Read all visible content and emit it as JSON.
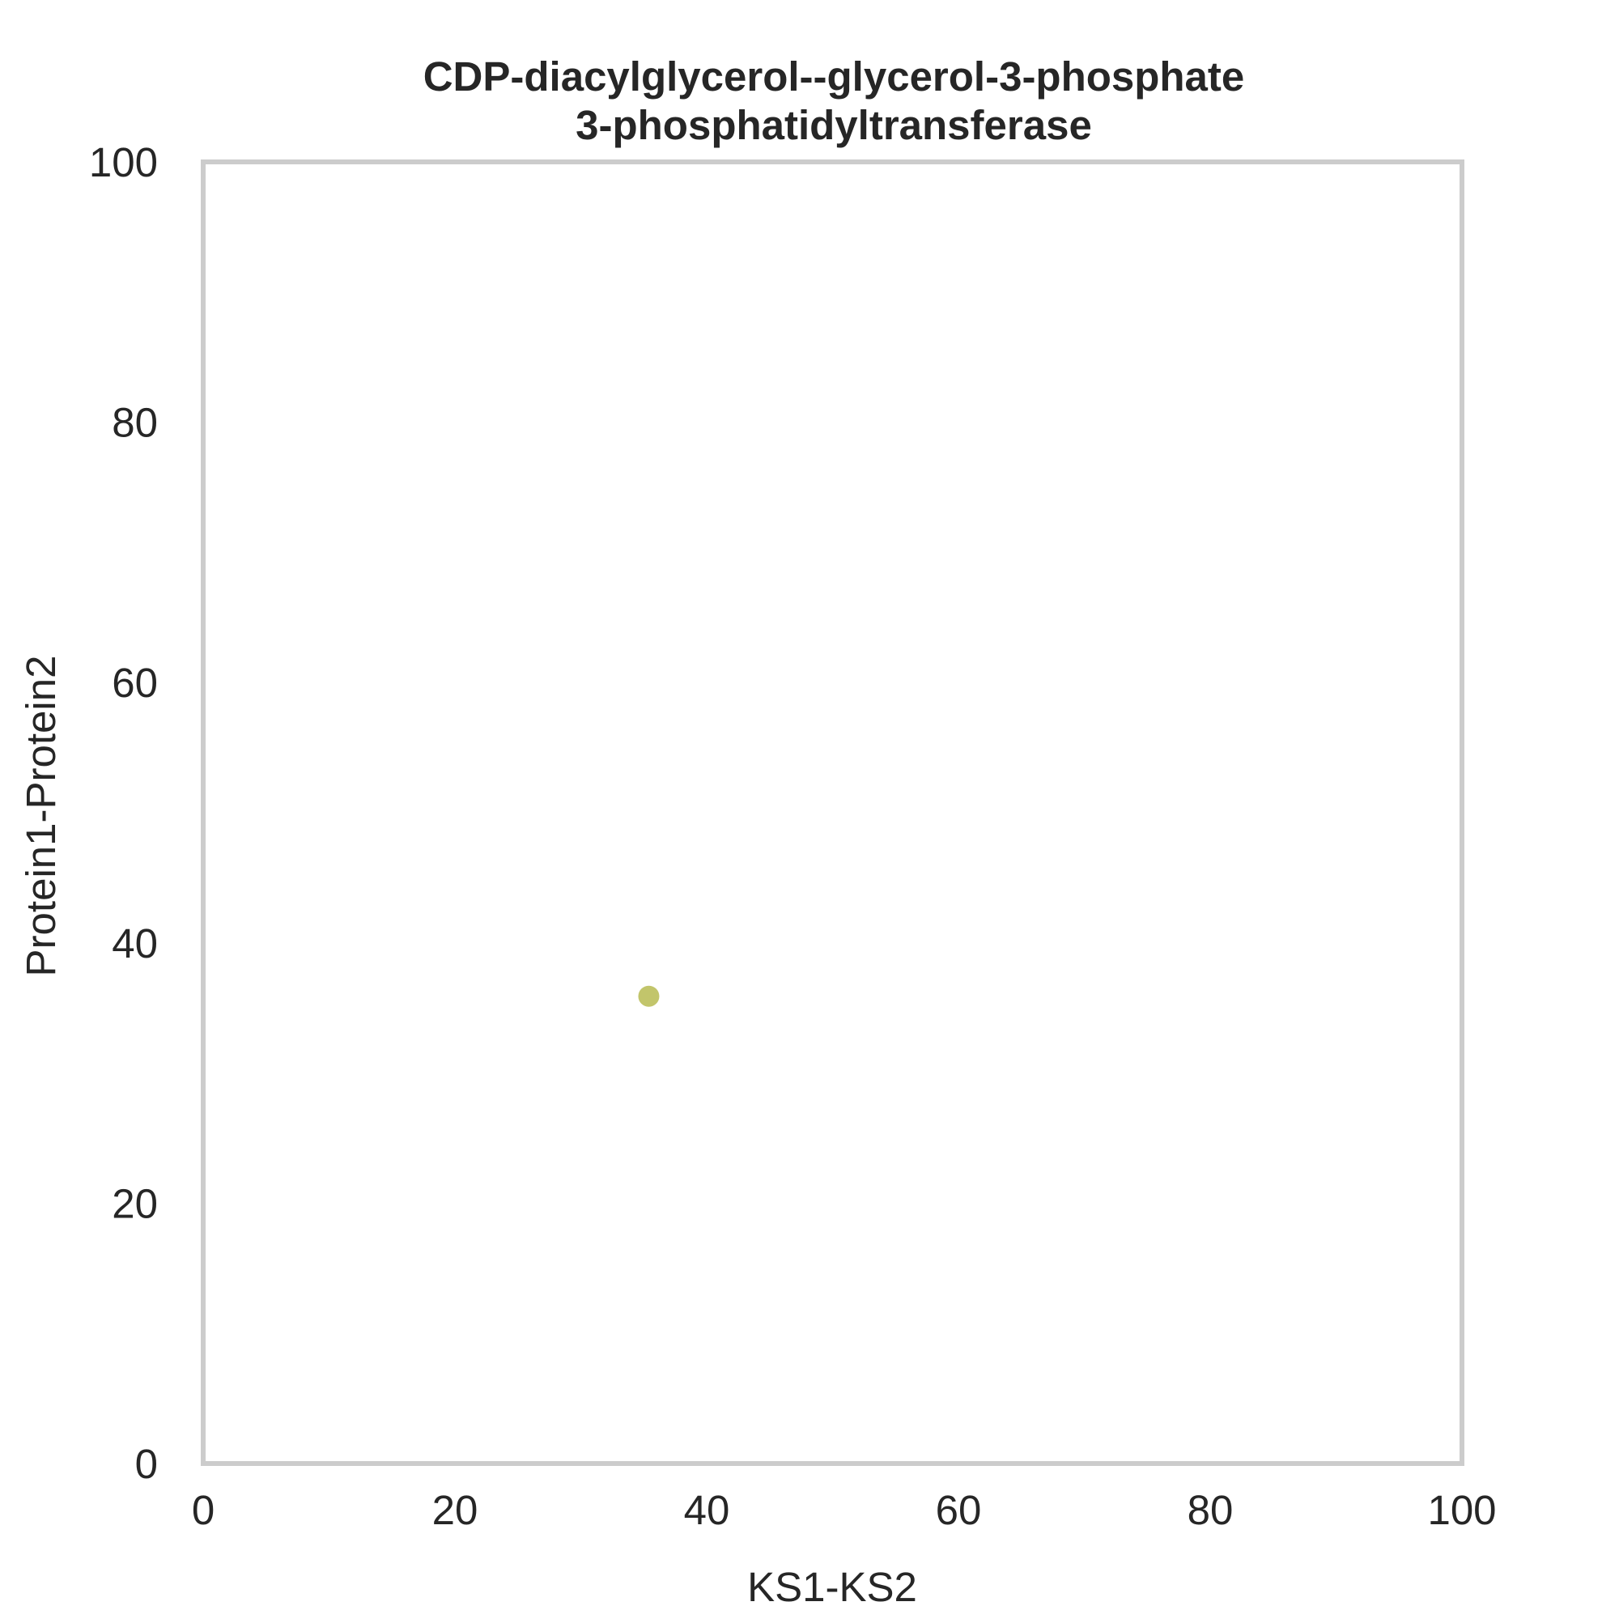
{
  "chart_data": {
    "type": "scatter",
    "title_lines": [
      "CDP-diacylglycerol--glycerol-3-phosphate",
      "3-phosphatidyltransferase"
    ],
    "xlabel": "KS1-KS2",
    "ylabel": "Protein1-Protein2",
    "xlim": [
      0,
      100
    ],
    "ylim": [
      0,
      100
    ],
    "xticks": [
      0,
      20,
      40,
      60,
      80,
      100
    ],
    "yticks": [
      0,
      20,
      40,
      60,
      80,
      100
    ],
    "grid": false,
    "points": [
      {
        "x": 35.4,
        "y": 35.9
      }
    ],
    "colors": {
      "point": "#c2c56b",
      "frame": "#cccccc",
      "text": "#262626"
    }
  }
}
